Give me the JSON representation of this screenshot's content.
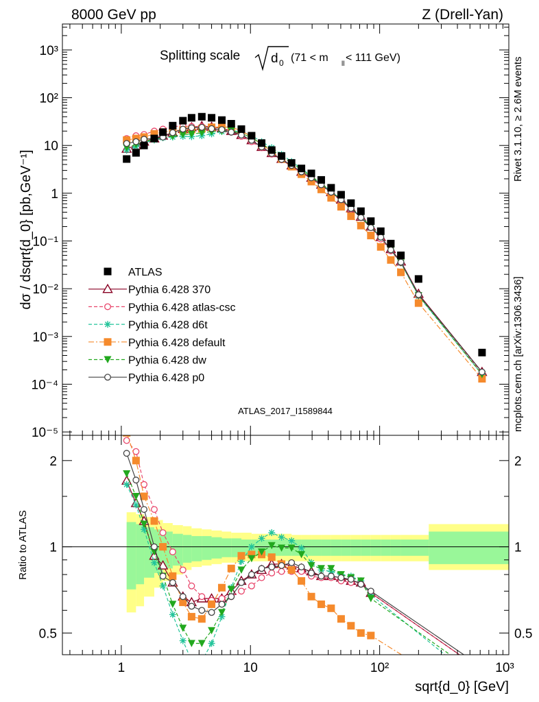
{
  "header": {
    "left": "8000 GeV pp",
    "right": "Z (Drell-Yan)"
  },
  "side_labels": {
    "rivet": "Rivet 3.1.10, ≥ 2.6M events",
    "mcplots": "mcplots.cern.ch [arXiv:1306.3436]"
  },
  "analysis_id": "ATLAS_2017_I1589844",
  "title": {
    "main": "Splitting scale",
    "symbol": "d",
    "subscript": "0",
    "range": "(71 < m",
    "range_sub": "ll",
    "range_end": " < 111 GeV)"
  },
  "main_ylabel": "dσ / dsqrt{d_0} [pb,GeV⁻¹]",
  "ratio_ylabel": "Ratio to ATLAS",
  "xlabel": "sqrt{d_0} [GeV]",
  "x_ticks": [
    "1",
    "10",
    "10²",
    "10³"
  ],
  "y_ticks_main": [
    "10⁻⁵",
    "10⁻⁴",
    "10⁻³",
    "10⁻²",
    "10⁻¹",
    "1",
    "10",
    "10²",
    "10³"
  ],
  "y_ticks_ratio": [
    "0.5",
    "1",
    "2"
  ],
  "chart_data": [
    {
      "type": "scatter",
      "panel": "main",
      "xlabel": "sqrt{d_0} [GeV]",
      "ylabel": "dσ / dsqrt{d_0} [pb,GeV⁻¹]",
      "xscale": "log",
      "yscale": "log",
      "xlim": [
        0.35,
        1000
      ],
      "ylim": [
        8.5e-06,
        3500
      ],
      "legend": "lower-left",
      "x": [
        1.1,
        1.3,
        1.5,
        1.8,
        2.1,
        2.5,
        3.0,
        3.5,
        4.2,
        5.0,
        6.0,
        7.1,
        8.5,
        10.2,
        12.2,
        14.6,
        17.4,
        20.8,
        24.8,
        29.6,
        35.3,
        42.1,
        50.3,
        60.0,
        71.6,
        85.5,
        102,
        122,
        146,
        200,
        620
      ],
      "series": [
        {
          "name": "ATLAS",
          "color": "#000000",
          "marker": "square-filled",
          "values": [
            5.2,
            7.0,
            10.0,
            14.0,
            19.0,
            26.0,
            33.0,
            38.0,
            40.0,
            38.0,
            34.0,
            28.5,
            22.0,
            16.0,
            11.2,
            8.0,
            6.0,
            4.3,
            3.3,
            2.6,
            1.9,
            1.3,
            0.93,
            0.62,
            0.42,
            0.26,
            0.16,
            0.088,
            0.05,
            0.016,
            0.00046
          ]
        },
        {
          "name": "Pythia 6.428 370",
          "color": "#880022",
          "marker": "triangle-open",
          "line": "solid",
          "values": [
            8.5,
            10.0,
            12.0,
            14.0,
            16.0,
            18.5,
            22.0,
            24.0,
            25.5,
            24.5,
            23.0,
            20.0,
            16.5,
            12.8,
            9.3,
            6.9,
            5.2,
            3.8,
            2.8,
            2.1,
            1.5,
            1.05,
            0.73,
            0.48,
            0.32,
            0.2,
            0.12,
            0.067,
            0.037,
            0.0078,
            0.00018
          ]
        },
        {
          "name": "Pythia 6.428 atlas-csc",
          "color": "#e8446a",
          "marker": "circle-open",
          "line": "dashed",
          "values": [
            14.0,
            16.0,
            17.0,
            20.0,
            22.0,
            25.0,
            25.5,
            25.0,
            25.0,
            24.0,
            22.0,
            19.0,
            15.5,
            12.0,
            9.0,
            6.6,
            5.0,
            3.6,
            2.7,
            2.0,
            1.45,
            1.0,
            0.7,
            0.47,
            0.31,
            0.19,
            0.11,
            0.062,
            0.035,
            0.0072,
            0.00017
          ]
        },
        {
          "name": "Pythia 6.428 d6t",
          "color": "#22c49a",
          "marker": "asterisk",
          "line": "dashed",
          "values": [
            8.0,
            9.5,
            11.5,
            13.0,
            14.5,
            15.0,
            15.5,
            15.3,
            16.0,
            17.5,
            19.5,
            20.5,
            19.5,
            16.0,
            12.0,
            9.0,
            6.5,
            4.6,
            3.3,
            2.3,
            1.6,
            1.1,
            0.74,
            0.49,
            0.32,
            0.2,
            0.12,
            0.065,
            0.035,
            0.007,
            0.00016
          ]
        },
        {
          "name": "Pythia 6.428 default",
          "color": "#f58a2c",
          "marker": "square-filled",
          "line": "dashdot",
          "values": [
            13.0,
            14.0,
            15.0,
            17.5,
            19.0,
            20.5,
            21.0,
            21.5,
            22.5,
            24.0,
            24.5,
            24.0,
            20.5,
            15.0,
            10.5,
            7.5,
            5.2,
            3.6,
            2.5,
            1.75,
            1.2,
            0.8,
            0.52,
            0.33,
            0.21,
            0.13,
            0.075,
            0.04,
            0.022,
            0.005,
            0.00013
          ]
        },
        {
          "name": "Pythia 6.428 dw",
          "color": "#22a81e",
          "marker": "triangle-down-filled",
          "line": "dashed",
          "values": [
            9.0,
            10.5,
            12.0,
            13.5,
            15.0,
            15.5,
            17.0,
            17.3,
            18.5,
            19.5,
            20.0,
            20.2,
            18.0,
            14.5,
            10.8,
            8.1,
            5.9,
            4.3,
            3.1,
            2.2,
            1.6,
            1.1,
            0.74,
            0.49,
            0.32,
            0.2,
            0.12,
            0.065,
            0.035,
            0.0072,
            0.00016
          ]
        },
        {
          "name": "Pythia 6.428 p0",
          "color": "#444444",
          "marker": "circle-open",
          "line": "solid",
          "values": [
            11.0,
            12.0,
            13.5,
            14.0,
            15.0,
            18.5,
            22.0,
            23.5,
            24.0,
            22.5,
            21.5,
            19.0,
            16.5,
            12.8,
            9.3,
            6.8,
            5.1,
            3.8,
            2.8,
            2.1,
            1.5,
            1.05,
            0.73,
            0.48,
            0.31,
            0.19,
            0.12,
            0.065,
            0.036,
            0.0075,
            0.00018
          ]
        }
      ]
    },
    {
      "type": "line",
      "panel": "ratio",
      "xlabel": "sqrt{d_0} [GeV]",
      "ylabel": "Ratio to ATLAS",
      "xscale": "log",
      "yscale": "log",
      "xlim": [
        0.35,
        1000
      ],
      "ylim": [
        0.42,
        2.45
      ],
      "x": [
        1.1,
        1.3,
        1.5,
        1.8,
        2.1,
        2.5,
        3.0,
        3.5,
        4.2,
        5.0,
        6.0,
        7.1,
        8.5,
        10.2,
        12.2,
        14.6,
        17.4,
        20.8,
        24.8,
        29.6,
        35.3,
        42.1,
        50.3,
        60.0,
        71.6,
        85.5,
        620
      ],
      "band_edges": [
        1.1,
        1.3,
        1.5,
        1.8,
        2.1,
        2.5,
        3.0,
        3.5,
        4.2,
        5.0,
        6.0,
        7.1,
        8.5,
        10.2,
        12.2,
        14.6,
        17.4,
        20.8,
        24.8,
        29.6,
        35.3,
        42.1,
        50.3,
        60.0,
        71.6,
        85.5,
        102,
        122,
        146,
        240,
        1000
      ],
      "band_yellow": [
        [
          0.59,
          1.32
        ],
        [
          0.62,
          1.3
        ],
        [
          0.67,
          1.27
        ],
        [
          0.72,
          1.24
        ],
        [
          0.76,
          1.21
        ],
        [
          0.8,
          1.19
        ],
        [
          0.83,
          1.18
        ],
        [
          0.85,
          1.16
        ],
        [
          0.86,
          1.15
        ],
        [
          0.87,
          1.14
        ],
        [
          0.88,
          1.13
        ],
        [
          0.88,
          1.12
        ],
        [
          0.89,
          1.12
        ],
        [
          0.89,
          1.11
        ],
        [
          0.89,
          1.11
        ],
        [
          0.89,
          1.11
        ],
        [
          0.89,
          1.11
        ],
        [
          0.89,
          1.1
        ],
        [
          0.89,
          1.1
        ],
        [
          0.89,
          1.1
        ],
        [
          0.89,
          1.1
        ],
        [
          0.89,
          1.1
        ],
        [
          0.89,
          1.1
        ],
        [
          0.89,
          1.1
        ],
        [
          0.89,
          1.1
        ],
        [
          0.89,
          1.1
        ],
        [
          0.89,
          1.1
        ],
        [
          0.89,
          1.1
        ],
        [
          0.89,
          1.1
        ],
        [
          0.83,
          1.2
        ]
      ],
      "band_green": [
        [
          0.71,
          1.22
        ],
        [
          0.74,
          1.2
        ],
        [
          0.78,
          1.17
        ],
        [
          0.81,
          1.15
        ],
        [
          0.84,
          1.13
        ],
        [
          0.86,
          1.11
        ],
        [
          0.88,
          1.1
        ],
        [
          0.89,
          1.09
        ],
        [
          0.9,
          1.09
        ],
        [
          0.91,
          1.08
        ],
        [
          0.92,
          1.07
        ],
        [
          0.92,
          1.07
        ],
        [
          0.93,
          1.06
        ],
        [
          0.93,
          1.06
        ],
        [
          0.93,
          1.06
        ],
        [
          0.93,
          1.06
        ],
        [
          0.93,
          1.06
        ],
        [
          0.93,
          1.06
        ],
        [
          0.93,
          1.06
        ],
        [
          0.93,
          1.06
        ],
        [
          0.93,
          1.06
        ],
        [
          0.93,
          1.06
        ],
        [
          0.93,
          1.06
        ],
        [
          0.93,
          1.06
        ],
        [
          0.93,
          1.06
        ],
        [
          0.93,
          1.06
        ],
        [
          0.93,
          1.06
        ],
        [
          0.93,
          1.06
        ],
        [
          0.93,
          1.06
        ],
        [
          0.87,
          1.13
        ]
      ],
      "band_colors": {
        "yellow": "#ffff88",
        "green": "#99f799"
      },
      "series": [
        {
          "name": "Pythia 6.428 370",
          "color": "#880022",
          "marker": "triangle-open",
          "line": "solid",
          "values": [
            1.7,
            1.42,
            1.23,
            0.93,
            0.86,
            0.75,
            0.67,
            0.64,
            0.66,
            0.66,
            0.66,
            0.7,
            0.76,
            0.8,
            0.83,
            0.87,
            0.87,
            0.86,
            0.84,
            0.82,
            0.79,
            0.79,
            0.78,
            0.76,
            0.75,
            0.69,
            0.37
          ]
        },
        {
          "name": "Pythia 6.428 atlas-csc",
          "color": "#e8446a",
          "marker": "circle-open",
          "line": "dashed",
          "values": [
            2.35,
            2.15,
            1.65,
            1.35,
            1.12,
            0.96,
            0.83,
            0.73,
            0.67,
            0.65,
            0.66,
            0.67,
            0.7,
            0.73,
            0.78,
            0.81,
            0.82,
            0.82,
            0.82,
            0.79,
            0.78,
            0.78,
            0.76,
            0.75,
            0.74,
            0.69,
            0.37
          ]
        },
        {
          "name": "Pythia 6.428 d6t",
          "color": "#22c49a",
          "marker": "asterisk",
          "line": "dashed",
          "values": [
            1.65,
            1.4,
            1.15,
            0.88,
            0.73,
            0.58,
            0.47,
            0.4,
            0.4,
            0.46,
            0.57,
            0.72,
            0.89,
            1.0,
            1.07,
            1.12,
            1.08,
            1.05,
            0.99,
            0.88,
            0.83,
            0.82,
            0.8,
            0.79,
            0.76,
            0.68,
            0.33
          ]
        },
        {
          "name": "Pythia 6.428 default",
          "color": "#f58a2c",
          "marker": "square-filled",
          "line": "dashdot",
          "values": [
            2.5,
            2.0,
            1.5,
            1.23,
            1.0,
            0.79,
            0.64,
            0.57,
            0.56,
            0.63,
            0.72,
            0.84,
            0.93,
            0.94,
            0.94,
            0.92,
            0.87,
            0.83,
            0.76,
            0.67,
            0.63,
            0.61,
            0.56,
            0.53,
            0.5,
            0.49,
            0.28
          ]
        },
        {
          "name": "Pythia 6.428 dw",
          "color": "#22a81e",
          "marker": "triangle-down-filled",
          "line": "dashed",
          "values": [
            1.8,
            1.5,
            1.2,
            0.96,
            0.79,
            0.63,
            0.52,
            0.46,
            0.46,
            0.51,
            0.59,
            0.71,
            0.83,
            0.91,
            0.96,
            1.01,
            0.99,
            0.99,
            0.94,
            0.86,
            0.84,
            0.84,
            0.8,
            0.78,
            0.76,
            0.66,
            0.35
          ]
        },
        {
          "name": "Pythia 6.428 p0",
          "color": "#444444",
          "marker": "circle-open",
          "line": "solid",
          "values": [
            2.12,
            1.71,
            1.35,
            1.0,
            0.79,
            0.75,
            0.67,
            0.62,
            0.6,
            0.59,
            0.63,
            0.67,
            0.75,
            0.8,
            0.84,
            0.85,
            0.86,
            0.88,
            0.85,
            0.81,
            0.79,
            0.79,
            0.78,
            0.77,
            0.74,
            0.7,
            0.38
          ]
        }
      ]
    }
  ]
}
